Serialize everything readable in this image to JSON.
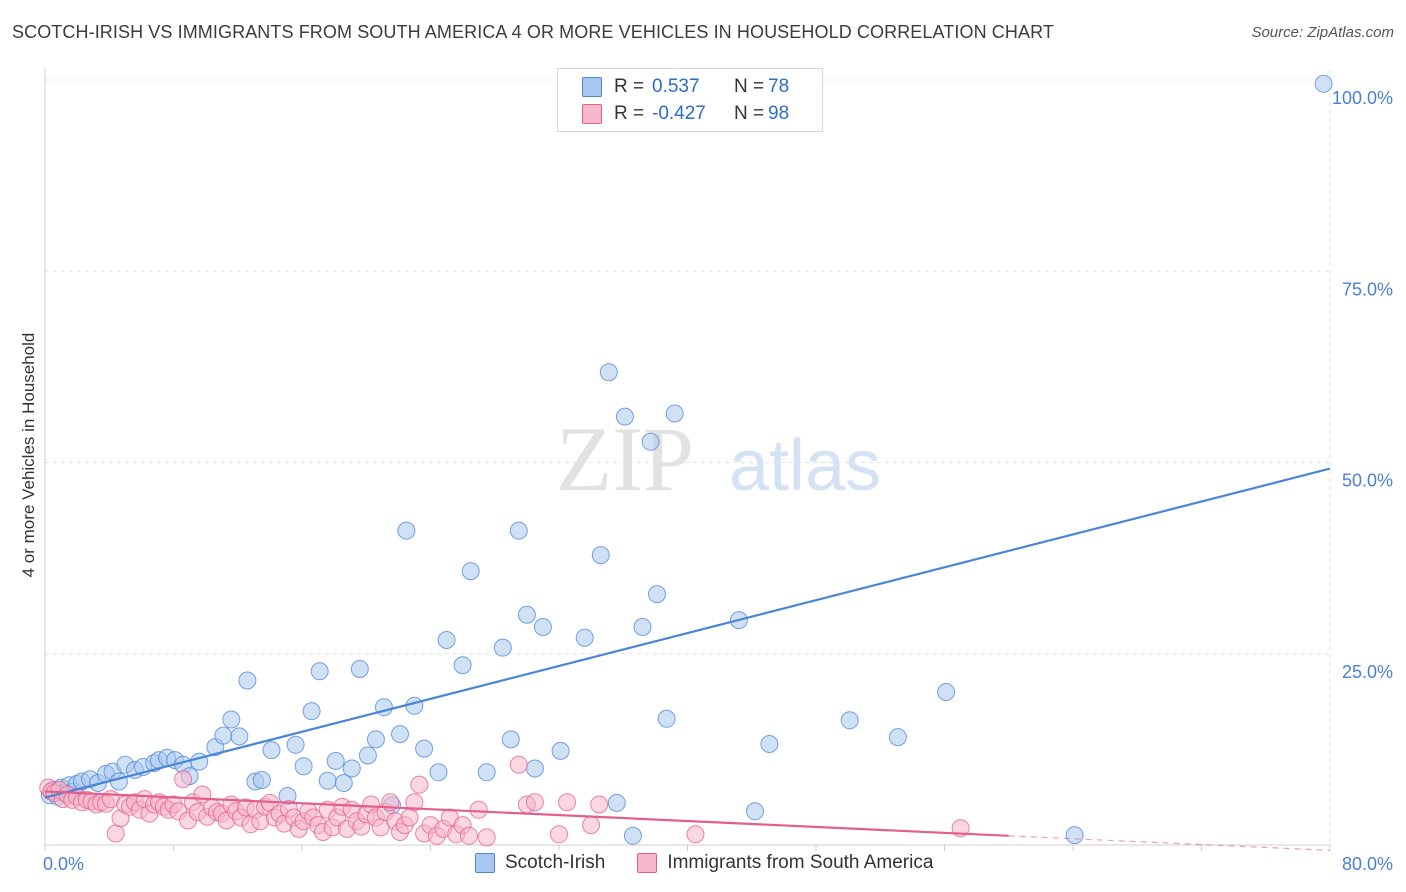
{
  "header": {
    "title": "SCOTCH-IRISH VS IMMIGRANTS FROM SOUTH AMERICA 4 OR MORE VEHICLES IN HOUSEHOLD CORRELATION CHART",
    "source": "Source: ZipAtlas.com"
  },
  "watermark": {
    "zip": "ZIP",
    "atlas": "atlas"
  },
  "legend": {
    "rows": [
      {
        "r_label": "R =",
        "r_value": "0.537",
        "n_label": "N =",
        "n_value": "78",
        "color": "#a9c8ef"
      },
      {
        "r_label": "R =",
        "r_value": "-0.427",
        "n_label": "N =",
        "n_value": "98",
        "color": "#f5b7c9"
      }
    ]
  },
  "chart_data": {
    "type": "scatter",
    "xlabel": "",
    "ylabel": "4 or more Vehicles in Household",
    "xlim": [
      0,
      80
    ],
    "ylim": [
      0,
      100
    ],
    "x_tick_labels": [
      "0.0%",
      "80.0%"
    ],
    "y_ticks": [
      25,
      50,
      75,
      100
    ],
    "y_tick_labels": [
      "25.0%",
      "50.0%",
      "75.0%",
      "100.0%"
    ],
    "grid": true,
    "legend_position": "bottom",
    "series": [
      {
        "name": "Scotch-Irish",
        "color": "#4a86d8",
        "fill": "#a9c8ef",
        "trend": {
          "x": [
            0,
            80
          ],
          "y": [
            6.2,
            49.2
          ]
        },
        "points": [
          [
            0.3,
            6.5
          ],
          [
            0.5,
            7.2
          ],
          [
            0.8,
            6.3
          ],
          [
            1.0,
            7.5
          ],
          [
            1.2,
            6.8
          ],
          [
            1.5,
            7.8
          ],
          [
            1.8,
            7.0
          ],
          [
            2.0,
            8.0
          ],
          [
            2.3,
            8.3
          ],
          [
            2.8,
            8.6
          ],
          [
            3.3,
            8.1
          ],
          [
            3.8,
            9.3
          ],
          [
            4.2,
            9.6
          ],
          [
            4.6,
            8.3
          ],
          [
            5.0,
            10.5
          ],
          [
            5.6,
            9.8
          ],
          [
            6.1,
            10.2
          ],
          [
            6.8,
            10.7
          ],
          [
            7.1,
            11.1
          ],
          [
            7.6,
            11.4
          ],
          [
            8.1,
            11.1
          ],
          [
            8.6,
            10.5
          ],
          [
            9.0,
            9.0
          ],
          [
            9.6,
            10.9
          ],
          [
            10.6,
            12.8
          ],
          [
            11.1,
            14.3
          ],
          [
            11.6,
            16.4
          ],
          [
            12.1,
            14.2
          ],
          [
            12.6,
            21.5
          ],
          [
            13.1,
            8.3
          ],
          [
            13.5,
            8.5
          ],
          [
            14.1,
            12.4
          ],
          [
            15.1,
            6.4
          ],
          [
            15.6,
            13.1
          ],
          [
            16.1,
            10.3
          ],
          [
            16.6,
            17.5
          ],
          [
            17.1,
            22.7
          ],
          [
            17.6,
            8.4
          ],
          [
            18.1,
            11.0
          ],
          [
            18.6,
            8.1
          ],
          [
            19.1,
            10.0
          ],
          [
            19.6,
            23.0
          ],
          [
            20.1,
            11.7
          ],
          [
            20.6,
            13.8
          ],
          [
            21.1,
            18.0
          ],
          [
            21.6,
            5.2
          ],
          [
            22.1,
            14.5
          ],
          [
            22.5,
            41.1
          ],
          [
            23.0,
            18.2
          ],
          [
            23.6,
            12.6
          ],
          [
            24.5,
            9.5
          ],
          [
            25.0,
            26.8
          ],
          [
            26.0,
            23.5
          ],
          [
            26.5,
            35.8
          ],
          [
            27.5,
            9.5
          ],
          [
            28.5,
            25.8
          ],
          [
            29.0,
            13.8
          ],
          [
            29.5,
            41.1
          ],
          [
            30.0,
            30.1
          ],
          [
            30.5,
            10.0
          ],
          [
            31.0,
            28.5
          ],
          [
            32.1,
            12.3
          ],
          [
            33.6,
            27.1
          ],
          [
            34.6,
            37.9
          ],
          [
            35.1,
            61.8
          ],
          [
            35.6,
            5.5
          ],
          [
            36.1,
            56.0
          ],
          [
            36.6,
            1.2
          ],
          [
            37.2,
            28.5
          ],
          [
            37.7,
            52.7
          ],
          [
            38.1,
            32.8
          ],
          [
            38.7,
            16.5
          ],
          [
            39.2,
            56.4
          ],
          [
            43.2,
            29.4
          ],
          [
            44.2,
            4.4
          ],
          [
            45.1,
            13.2
          ],
          [
            50.1,
            16.3
          ],
          [
            53.1,
            14.1
          ],
          [
            56.1,
            20.0
          ],
          [
            64.1,
            1.3
          ],
          [
            79.6,
            99.5
          ]
        ]
      },
      {
        "name": "Immigrants from South America",
        "color": "#e35d8d",
        "fill": "#f5b7c9",
        "trend": {
          "x": [
            0,
            60
          ],
          "y": [
            7.0,
            1.2
          ]
        },
        "trend_dashed": {
          "x": [
            60,
            80
          ],
          "y": [
            1.2,
            -0.7
          ]
        },
        "points": [
          [
            0.2,
            7.5
          ],
          [
            0.4,
            7.0
          ],
          [
            0.6,
            6.8
          ],
          [
            0.9,
            7.2
          ],
          [
            1.1,
            6.0
          ],
          [
            1.4,
            6.6
          ],
          [
            1.7,
            5.9
          ],
          [
            2.0,
            6.3
          ],
          [
            2.3,
            5.6
          ],
          [
            2.6,
            5.9
          ],
          [
            2.9,
            5.7
          ],
          [
            3.2,
            5.3
          ],
          [
            3.5,
            5.6
          ],
          [
            3.8,
            5.4
          ],
          [
            4.1,
            6.0
          ],
          [
            4.4,
            1.5
          ],
          [
            4.7,
            3.5
          ],
          [
            5.0,
            5.3
          ],
          [
            5.3,
            5.0
          ],
          [
            5.6,
            5.6
          ],
          [
            5.9,
            4.6
          ],
          [
            6.2,
            6.0
          ],
          [
            6.5,
            4.1
          ],
          [
            6.8,
            5.3
          ],
          [
            7.1,
            5.6
          ],
          [
            7.4,
            5.0
          ],
          [
            7.7,
            4.6
          ],
          [
            8.0,
            5.3
          ],
          [
            8.3,
            4.4
          ],
          [
            8.6,
            8.6
          ],
          [
            8.9,
            3.2
          ],
          [
            9.2,
            5.6
          ],
          [
            9.5,
            4.3
          ],
          [
            9.8,
            6.6
          ],
          [
            10.1,
            3.7
          ],
          [
            10.4,
            4.9
          ],
          [
            10.7,
            4.3
          ],
          [
            11.0,
            4.1
          ],
          [
            11.3,
            3.2
          ],
          [
            11.6,
            5.3
          ],
          [
            11.9,
            4.4
          ],
          [
            12.2,
            3.6
          ],
          [
            12.5,
            4.9
          ],
          [
            12.8,
            2.7
          ],
          [
            13.1,
            4.6
          ],
          [
            13.4,
            3.1
          ],
          [
            13.7,
            5.0
          ],
          [
            14.0,
            5.5
          ],
          [
            14.3,
            3.6
          ],
          [
            14.6,
            4.1
          ],
          [
            14.9,
            2.8
          ],
          [
            15.2,
            4.7
          ],
          [
            15.5,
            3.6
          ],
          [
            15.8,
            2.1
          ],
          [
            16.1,
            3.1
          ],
          [
            16.4,
            4.4
          ],
          [
            16.7,
            3.6
          ],
          [
            17.0,
            2.6
          ],
          [
            17.3,
            1.7
          ],
          [
            17.6,
            4.6
          ],
          [
            17.9,
            2.3
          ],
          [
            18.2,
            3.6
          ],
          [
            18.5,
            5.0
          ],
          [
            18.8,
            2.1
          ],
          [
            19.1,
            4.6
          ],
          [
            19.4,
            3.1
          ],
          [
            19.7,
            2.4
          ],
          [
            20.0,
            4.0
          ],
          [
            20.3,
            5.3
          ],
          [
            20.6,
            3.6
          ],
          [
            20.9,
            2.3
          ],
          [
            21.2,
            4.3
          ],
          [
            21.5,
            5.6
          ],
          [
            21.8,
            3.1
          ],
          [
            22.1,
            1.7
          ],
          [
            22.4,
            2.6
          ],
          [
            22.7,
            3.6
          ],
          [
            23.0,
            5.6
          ],
          [
            23.3,
            7.9
          ],
          [
            23.6,
            1.5
          ],
          [
            24.0,
            2.6
          ],
          [
            24.4,
            1.2
          ],
          [
            24.8,
            2.1
          ],
          [
            25.2,
            3.6
          ],
          [
            25.6,
            1.4
          ],
          [
            26.0,
            2.6
          ],
          [
            26.4,
            1.2
          ],
          [
            27.0,
            4.6
          ],
          [
            27.5,
            1.0
          ],
          [
            29.5,
            10.5
          ],
          [
            30.0,
            5.3
          ],
          [
            30.5,
            5.6
          ],
          [
            32.0,
            1.4
          ],
          [
            32.5,
            5.6
          ],
          [
            34.0,
            2.6
          ],
          [
            34.5,
            5.3
          ],
          [
            40.5,
            1.4
          ],
          [
            57.0,
            2.2
          ]
        ]
      }
    ]
  }
}
